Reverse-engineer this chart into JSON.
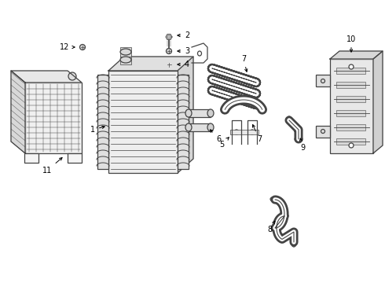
{
  "background_color": "#ffffff",
  "line_color": "#444444",
  "label_color": "#000000",
  "lw": 0.9,
  "label_fs": 7.0
}
